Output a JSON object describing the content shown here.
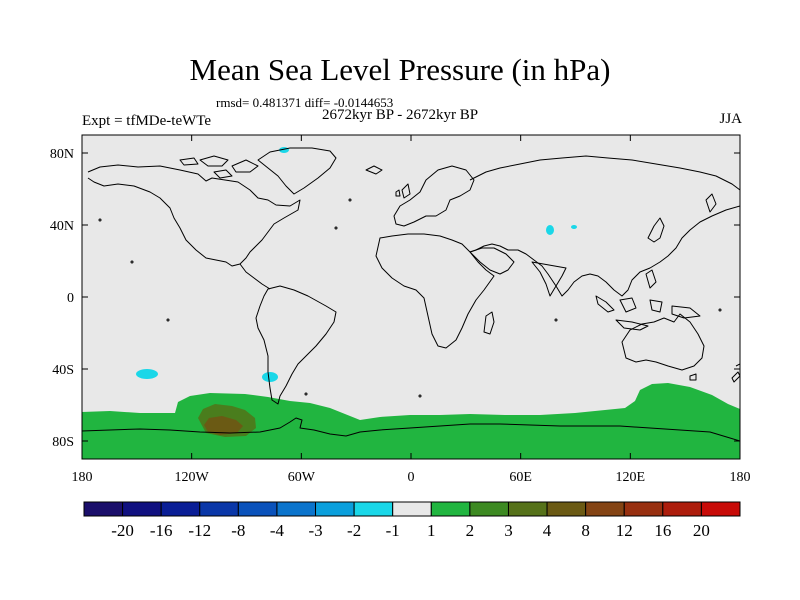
{
  "header": {
    "title": "Mean Sea Level Pressure (in hPa)",
    "stats": "rmsd= 0.481371 diff= -0.0144653",
    "experiment": "Expt = tfMDe-teWTe",
    "period": "2672kyr BP - 2672kyr BP",
    "season": "JJA"
  },
  "map": {
    "lat_range": [
      -90,
      90
    ],
    "lon_range": [
      -180,
      180
    ],
    "background_color": "#e8e8e8",
    "lat_ticks": [
      {
        "value": 80,
        "label": "80N"
      },
      {
        "value": 40,
        "label": "40N"
      },
      {
        "value": 0,
        "label": "0"
      },
      {
        "value": -40,
        "label": "40S"
      },
      {
        "value": -80,
        "label": "80S"
      }
    ],
    "lon_ticks": [
      {
        "value": -180,
        "label": "180"
      },
      {
        "value": -120,
        "label": "120W"
      },
      {
        "value": -60,
        "label": "60W"
      },
      {
        "value": 0,
        "label": "0"
      },
      {
        "value": 60,
        "label": "60E"
      },
      {
        "value": 120,
        "label": "120E"
      },
      {
        "value": 180,
        "label": "180"
      }
    ],
    "colors": {
      "band_1_2": "#21b540",
      "band_3_4": "#4a7d1d",
      "band_4_8": "#6b5a14",
      "band_m2_m1": "#1ad7e8",
      "coastline": "#000000"
    }
  },
  "colorbar": {
    "colors": [
      "#1b0f6b",
      "#101080",
      "#0a1e96",
      "#0a37a8",
      "#0a52bb",
      "#0b74cc",
      "#0a9fdc",
      "#1ad7e8",
      "#e8e8e8",
      "#21b540",
      "#3d8a22",
      "#56721a",
      "#6b5a14",
      "#844414",
      "#983010",
      "#ad1d0c",
      "#c80b08"
    ],
    "labels": [
      "-20",
      "-16",
      "-12",
      "-8",
      "-4",
      "-3",
      "-2",
      "-1",
      "1",
      "2",
      "3",
      "4",
      "8",
      "12",
      "16",
      "20"
    ]
  }
}
